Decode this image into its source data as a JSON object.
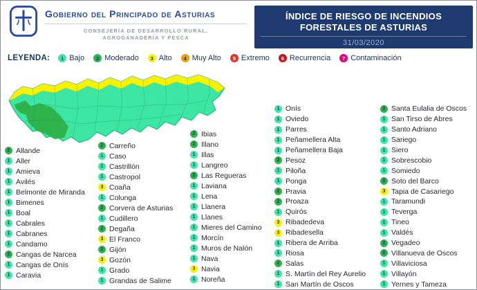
{
  "header": {
    "government": "Gobierno del Principado de Asturias",
    "department_line1": "CONSEJERÍA DE DESARROLLO RURAL,",
    "department_line2": "AGROGANADERÍA Y PESCA",
    "title_line1": "ÍNDICE DE RIESGO DE INCENDIOS",
    "title_line2": "FORESTALES DE ASTURIAS",
    "date": "31/03/2020"
  },
  "legend": {
    "label": "LEYENDA:",
    "items": [
      {
        "level": "1",
        "name": "Bajo"
      },
      {
        "level": "2",
        "name": "Moderado"
      },
      {
        "level": "3",
        "name": "Alto"
      },
      {
        "level": "4",
        "name": "Muy Alto"
      },
      {
        "level": "5",
        "name": "Extremo"
      },
      {
        "level": "6",
        "name": "Recurrencia"
      },
      {
        "level": "7",
        "name": "Contaminación"
      }
    ]
  },
  "risk_colors": {
    "1": "#3ee6a3",
    "2": "#2fb34c",
    "3": "#f6f200",
    "4": "#f59e00",
    "5": "#ea3423",
    "6": "#c3161d",
    "7": "#e6007e"
  },
  "colors": {
    "navy": "#1e3a6e",
    "brand-blue": "#2c4a9c",
    "dept-gray": "#949aa4",
    "text-dark": "#17355e",
    "muni-text": "#26292e",
    "date-blue": "#9db4dc",
    "border-gray": "#8b9097",
    "map-stroke": "#1d9c6c"
  },
  "map": {
    "region": "Asturias"
  },
  "municipalities": {
    "columns": [
      {
        "items": [
          {
            "level": "2",
            "name": "Allande"
          },
          {
            "level": "1",
            "name": "Aller"
          },
          {
            "level": "1",
            "name": "Amieva"
          },
          {
            "level": "1",
            "name": "Avilés"
          },
          {
            "level": "1",
            "name": "Belmonte de Miranda"
          },
          {
            "level": "1",
            "name": "Bimenes"
          },
          {
            "level": "1",
            "name": "Boal"
          },
          {
            "level": "1",
            "name": "Cabrales"
          },
          {
            "level": "1",
            "name": "Cabranes"
          },
          {
            "level": "1",
            "name": "Candamo"
          },
          {
            "level": "2",
            "name": "Cangas de Narcea"
          },
          {
            "level": "1",
            "name": "Cangas de Onís"
          },
          {
            "level": "1",
            "name": "Caravia"
          }
        ]
      },
      {
        "items": [
          {
            "level": "2",
            "name": "Carreño"
          },
          {
            "level": "1",
            "name": "Caso"
          },
          {
            "level": "1",
            "name": "Castrillón"
          },
          {
            "level": "1",
            "name": "Castropol"
          },
          {
            "level": "3",
            "name": "Coaña"
          },
          {
            "level": "1",
            "name": "Colunga"
          },
          {
            "level": "2",
            "name": "Corvera de Asturias"
          },
          {
            "level": "1",
            "name": "Cudillero"
          },
          {
            "level": "2",
            "name": "Degaña"
          },
          {
            "level": "3",
            "name": "El Franco"
          },
          {
            "level": "2",
            "name": "Gijón"
          },
          {
            "level": "3",
            "name": "Gozón"
          },
          {
            "level": "1",
            "name": "Grado"
          },
          {
            "level": "1",
            "name": "Grandas de Salime"
          }
        ]
      },
      {
        "items": [
          {
            "level": "2",
            "name": "Ibias"
          },
          {
            "level": "2",
            "name": "Illano"
          },
          {
            "level": "1",
            "name": "Illas"
          },
          {
            "level": "1",
            "name": "Langreo"
          },
          {
            "level": "2",
            "name": "Las Regueras"
          },
          {
            "level": "1",
            "name": "Laviana"
          },
          {
            "level": "1",
            "name": "Lena"
          },
          {
            "level": "1",
            "name": "Llanera"
          },
          {
            "level": "1",
            "name": "Llanes"
          },
          {
            "level": "1",
            "name": "Mieres del Camino"
          },
          {
            "level": "1",
            "name": "Morcín"
          },
          {
            "level": "1",
            "name": "Muros de Nalón"
          },
          {
            "level": "1",
            "name": "Nava"
          },
          {
            "level": "3",
            "name": "Navia"
          },
          {
            "level": "1",
            "name": "Noreña"
          }
        ]
      },
      {
        "items": [
          {
            "level": "1",
            "name": "Onís"
          },
          {
            "level": "1",
            "name": "Oviedo"
          },
          {
            "level": "1",
            "name": "Parres"
          },
          {
            "level": "1",
            "name": "Peñamellera Alta"
          },
          {
            "level": "1",
            "name": "Peñamellera Baja"
          },
          {
            "level": "2",
            "name": "Pesoz"
          },
          {
            "level": "1",
            "name": "Piloña"
          },
          {
            "level": "1",
            "name": "Ponga"
          },
          {
            "level": "2",
            "name": "Pravia"
          },
          {
            "level": "2",
            "name": "Proaza"
          },
          {
            "level": "1",
            "name": "Quirós"
          },
          {
            "level": "3",
            "name": "Ribadedeva"
          },
          {
            "level": "3",
            "name": "Ribadesella"
          },
          {
            "level": "1",
            "name": "Ribera de Arriba"
          },
          {
            "level": "1",
            "name": "Riosa"
          },
          {
            "level": "2",
            "name": "Salas"
          },
          {
            "level": "1",
            "name": "S. Martín del Rey Aurelio"
          },
          {
            "level": "1",
            "name": "San Martín de Oscos"
          }
        ]
      },
      {
        "items": [
          {
            "level": "2",
            "name": "Santa Eulalia de Oscos"
          },
          {
            "level": "1",
            "name": "San Tirso de Abres"
          },
          {
            "level": "1",
            "name": "Santo Adriano"
          },
          {
            "level": "1",
            "name": "Sariego"
          },
          {
            "level": "1",
            "name": "Siero"
          },
          {
            "level": "1",
            "name": "Sobrescobio"
          },
          {
            "level": "1",
            "name": "Somiedo"
          },
          {
            "level": "2",
            "name": "Soto del Barco"
          },
          {
            "level": "3",
            "name": "Tapia de Casariego"
          },
          {
            "level": "1",
            "name": "Taramundi"
          },
          {
            "level": "1",
            "name": "Teverga"
          },
          {
            "level": "1",
            "name": "Tineo"
          },
          {
            "level": "1",
            "name": "Valdés"
          },
          {
            "level": "2",
            "name": "Vegadeo"
          },
          {
            "level": "2",
            "name": "Villanueva de Oscos"
          },
          {
            "level": "1",
            "name": "Villaviciosa"
          },
          {
            "level": "1",
            "name": "Villayón"
          },
          {
            "level": "1",
            "name": "Yernes y Tameza"
          }
        ]
      }
    ]
  }
}
